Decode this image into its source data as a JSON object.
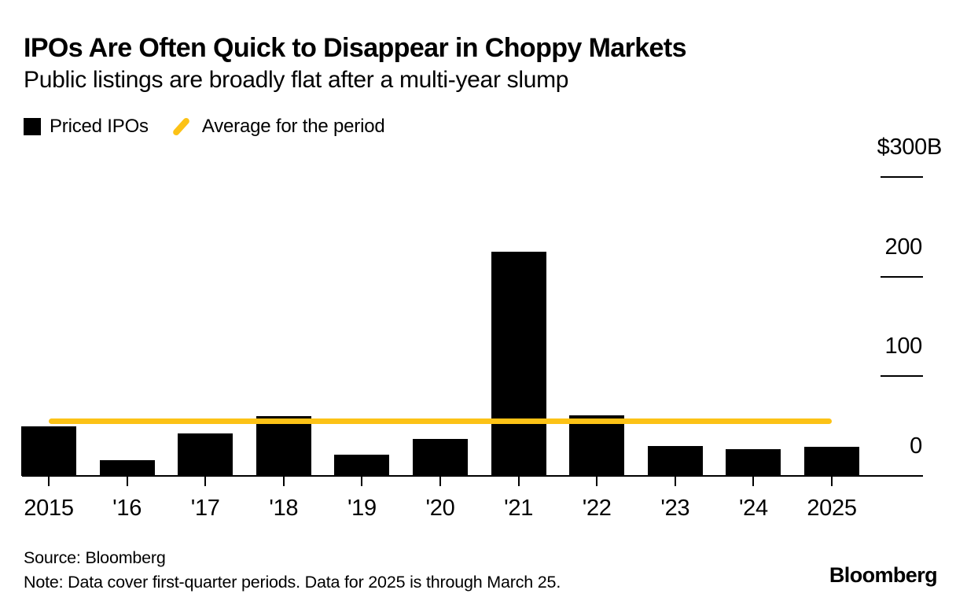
{
  "header": {
    "title": "IPOs Are Often Quick to Disappear in Choppy Markets",
    "subtitle": "Public listings are broadly flat after a multi-year slump"
  },
  "legend": {
    "items": [
      {
        "label": "Priced IPOs",
        "swatch": "black-square",
        "color": "#000000"
      },
      {
        "label": "Average for the period",
        "swatch": "yellow-slash",
        "color": "#fcc216"
      }
    ]
  },
  "chart_data": {
    "type": "bar",
    "title": "IPOs Are Often Quick to Disappear in Choppy Markets",
    "subtitle": "Public listings are broadly flat after a multi-year slump",
    "unit": "$B",
    "categories": [
      "2015",
      "'16",
      "'17",
      "'18",
      "'19",
      "'20",
      "'21",
      "'22",
      "'23",
      "'24",
      "2025"
    ],
    "values": [
      50,
      16,
      43,
      60,
      21,
      37,
      225,
      61,
      30,
      27,
      29
    ],
    "series_name": "Priced IPOs",
    "average_line": {
      "label": "Average for the period",
      "value": 54.5,
      "color": "#fcc216"
    },
    "ylim": [
      0,
      300
    ],
    "y_ticks": [
      {
        "label": "$300B",
        "value": 300
      },
      {
        "label": "200",
        "value": 200
      },
      {
        "label": "100",
        "value": 100
      },
      {
        "label": "0",
        "value": 0
      }
    ],
    "bar_color": "#000000",
    "legend_position": "top-left",
    "grid": "short-right-tick-marks"
  },
  "footer": {
    "source": "Source: Bloomberg",
    "note": "Note: Data cover first-quarter periods. Data for 2025 is through March 25.",
    "logo": "Bloomberg"
  }
}
